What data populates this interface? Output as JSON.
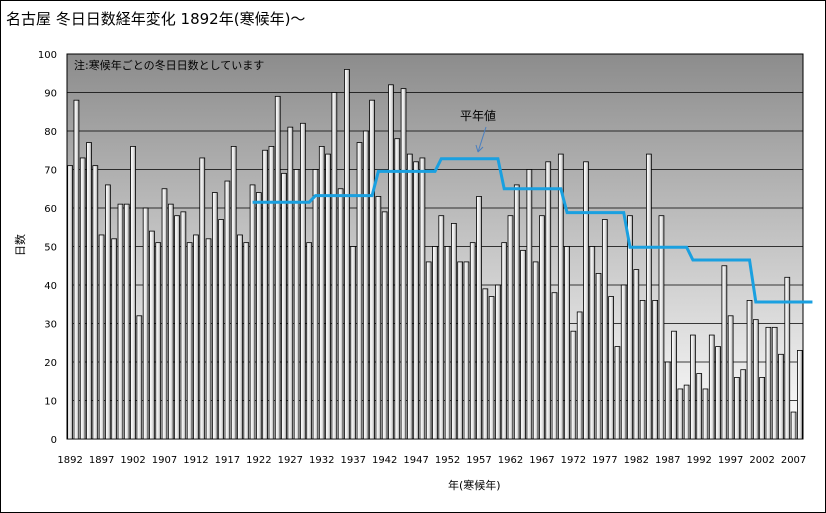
{
  "title": "名古屋  冬日日数経年変化  1892年(寒候年)〜",
  "chart_data": {
    "type": "bar",
    "title": "名古屋  冬日日数経年変化  1892年(寒候年)〜",
    "xlabel": "年(寒候年)",
    "ylabel": "日数",
    "ylim": [
      0,
      100
    ],
    "yticks": [
      0,
      10,
      20,
      30,
      40,
      50,
      60,
      70,
      80,
      90,
      100
    ],
    "grid": true,
    "note": "注:寒候年ごとの冬日日数としています",
    "x_tick_labels": [
      "1892",
      "1897",
      "1902",
      "1907",
      "1912",
      "1917",
      "1922",
      "1927",
      "1932",
      "1937",
      "1942",
      "1947",
      "1952",
      "1957",
      "1962",
      "1967",
      "1972",
      "1977",
      "1982",
      "1987",
      "1992",
      "1997",
      "2002",
      "2007"
    ],
    "first_year": 1892,
    "values": [
      71,
      88,
      73,
      77,
      71,
      53,
      66,
      52,
      61,
      61,
      76,
      32,
      60,
      54,
      51,
      65,
      61,
      58,
      59,
      51,
      53,
      73,
      52,
      64,
      57,
      67,
      76,
      53,
      51,
      66,
      64,
      75,
      76,
      89,
      69,
      81,
      70,
      82,
      51,
      70,
      76,
      74,
      90,
      65,
      96,
      50,
      77,
      80,
      88,
      63,
      59,
      92,
      78,
      91,
      74,
      72,
      73,
      46,
      50,
      58,
      50,
      56,
      46,
      46,
      51,
      63,
      39,
      37,
      40,
      51,
      58,
      66,
      49,
      70,
      46,
      58,
      72,
      38,
      74,
      50,
      28,
      33,
      72,
      50,
      43,
      57,
      37,
      24,
      40,
      58,
      44,
      36,
      74,
      36,
      58,
      20,
      28,
      13,
      14,
      27,
      17,
      13,
      27,
      24,
      45,
      32,
      16,
      18,
      36,
      31,
      16,
      29,
      29,
      22,
      42,
      7,
      23
    ],
    "normals": {
      "label": "平年値",
      "color": "#1aa0e0",
      "segments": [
        {
          "from": 1921,
          "to": 1930,
          "value": 61.5
        },
        {
          "from": 1931,
          "to": 1940,
          "value": 63.2
        },
        {
          "from": 1941,
          "to": 1950,
          "value": 69.5
        },
        {
          "from": 1951,
          "to": 1960,
          "value": 72.8
        },
        {
          "from": 1961,
          "to": 1970,
          "value": 65
        },
        {
          "from": 1971,
          "to": 1980,
          "value": 58.8
        },
        {
          "from": 1981,
          "to": 1990,
          "value": 49.8
        },
        {
          "from": 1991,
          "to": 2000,
          "value": 46.5
        },
        {
          "from": 2001,
          "to": 2010,
          "value": 35.6
        }
      ]
    }
  }
}
